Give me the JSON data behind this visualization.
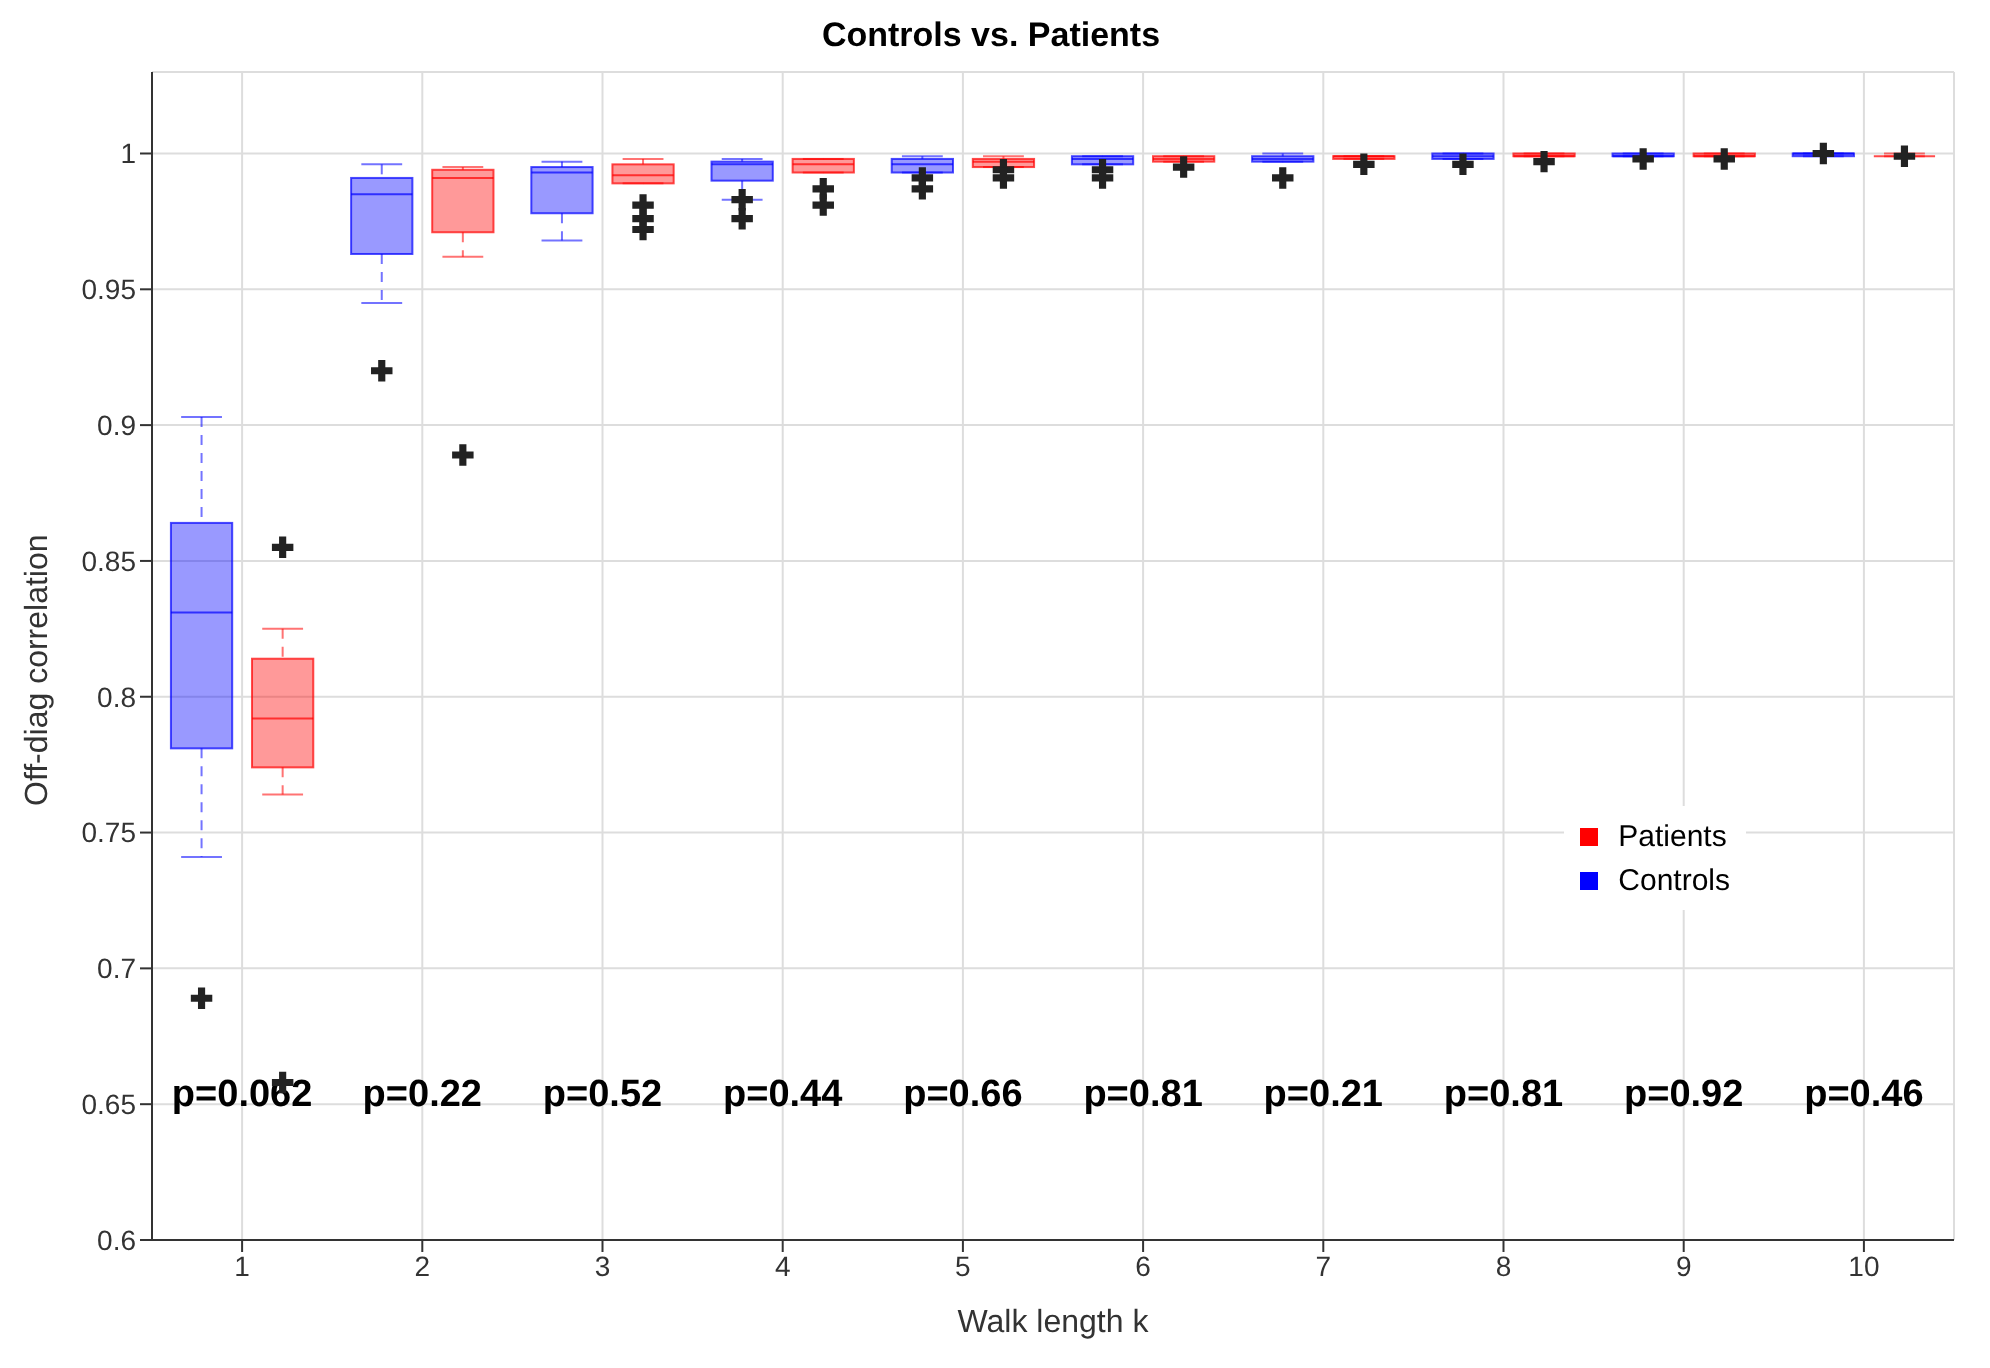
{
  "chart_data": {
    "type": "box",
    "title": "Controls vs. Patients",
    "xlabel": "Walk length k",
    "ylabel": "Off-diag correlation",
    "categories": [
      "1",
      "2",
      "3",
      "4",
      "5",
      "6",
      "7",
      "8",
      "9",
      "10"
    ],
    "ylim": [
      0.6,
      1.03
    ],
    "yticks": [
      0.6,
      0.65,
      0.7,
      0.75,
      0.8,
      0.85,
      0.9,
      0.95,
      1
    ],
    "grid": true,
    "legend": "bottom right",
    "series": [
      {
        "name": "Controls",
        "color": "#0000ff",
        "boxes": [
          {
            "low": 0.741,
            "q1": 0.781,
            "median": 0.831,
            "q3": 0.864,
            "high": 0.903,
            "outliers": [
              0.689
            ]
          },
          {
            "low": 0.945,
            "q1": 0.963,
            "median": 0.985,
            "q3": 0.991,
            "high": 0.996,
            "outliers": [
              0.92
            ]
          },
          {
            "low": 0.968,
            "q1": 0.978,
            "median": 0.993,
            "q3": 0.995,
            "high": 0.997
          },
          {
            "low": 0.983,
            "q1": 0.99,
            "median": 0.996,
            "q3": 0.997,
            "high": 0.998,
            "outliers": [
              0.983,
              0.976
            ]
          },
          {
            "low": 0.993,
            "q1": 0.993,
            "median": 0.996,
            "q3": 0.998,
            "high": 0.999,
            "outliers": [
              0.991,
              0.987
            ]
          },
          {
            "low": 0.996,
            "q1": 0.996,
            "median": 0.998,
            "q3": 0.999,
            "high": 0.999,
            "outliers": [
              0.994,
              0.991
            ]
          },
          {
            "low": 0.997,
            "q1": 0.997,
            "median": 0.998,
            "q3": 0.999,
            "high": 1,
            "outliers": [
              0.991
            ]
          },
          {
            "low": 0.998,
            "q1": 0.998,
            "median": 0.999,
            "q3": 1,
            "high": 1,
            "outliers": [
              0.996
            ]
          },
          {
            "low": 0.999,
            "q1": 0.999,
            "median": 0.999,
            "q3": 1,
            "high": 1,
            "outliers": [
              0.998
            ]
          },
          {
            "low": 0.999,
            "q1": 0.999,
            "median": 1,
            "q3": 1,
            "high": 1,
            "outliers": [
              1
            ]
          }
        ]
      },
      {
        "name": "Patients",
        "color": "#ff0000",
        "boxes": [
          {
            "low": 0.764,
            "q1": 0.774,
            "median": 0.792,
            "q3": 0.814,
            "high": 0.825,
            "outliers": [
              0.855,
              0.658
            ]
          },
          {
            "low": 0.962,
            "q1": 0.971,
            "median": 0.991,
            "q3": 0.994,
            "high": 0.995,
            "outliers": [
              0.889
            ]
          },
          {
            "low": 0.989,
            "q1": 0.989,
            "median": 0.992,
            "q3": 0.996,
            "high": 0.998,
            "outliers": [
              0.981,
              0.976,
              0.972
            ]
          },
          {
            "low": 0.993,
            "q1": 0.993,
            "median": 0.996,
            "q3": 0.998,
            "high": 0.998,
            "outliers": [
              0.987,
              0.981
            ]
          },
          {
            "low": 0.995,
            "q1": 0.995,
            "median": 0.997,
            "q3": 0.998,
            "high": 0.999,
            "outliers": [
              0.994,
              0.991
            ]
          },
          {
            "low": 0.997,
            "q1": 0.997,
            "median": 0.998,
            "q3": 0.999,
            "high": 0.999,
            "outliers": [
              0.995
            ]
          },
          {
            "low": 0.998,
            "q1": 0.998,
            "median": 0.999,
            "q3": 0.999,
            "high": 0.999,
            "outliers": [
              0.996
            ]
          },
          {
            "low": 0.999,
            "q1": 0.999,
            "median": 0.999,
            "q3": 1,
            "high": 1,
            "outliers": [
              0.997
            ]
          },
          {
            "low": 0.999,
            "q1": 0.999,
            "median": 0.999,
            "q3": 1,
            "high": 1,
            "outliers": [
              0.998
            ]
          },
          {
            "low": 0.999,
            "q1": 0.999,
            "median": 0.999,
            "q3": 0.999,
            "high": 1,
            "outliers": [
              0.999
            ]
          }
        ]
      }
    ],
    "annotations": [
      "p=0.062",
      "p=0.22",
      "p=0.52",
      "p=0.44",
      "p=0.66",
      "p=0.81",
      "p=0.21",
      "p=0.81",
      "p=0.92",
      "p=0.46"
    ]
  }
}
